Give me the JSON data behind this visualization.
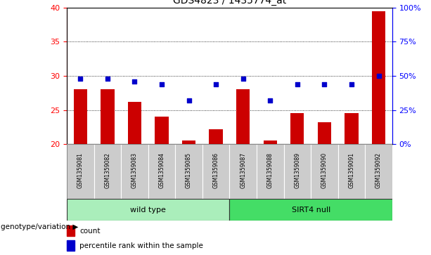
{
  "title": "GDS4823 / 1435774_at",
  "samples": [
    "GSM1359081",
    "GSM1359082",
    "GSM1359083",
    "GSM1359084",
    "GSM1359085",
    "GSM1359086",
    "GSM1359087",
    "GSM1359088",
    "GSM1359089",
    "GSM1359090",
    "GSM1359091",
    "GSM1359092"
  ],
  "count_values": [
    28.0,
    28.0,
    26.2,
    24.0,
    20.5,
    22.2,
    28.0,
    20.5,
    24.5,
    23.2,
    24.5,
    39.5
  ],
  "percentile_values": [
    48,
    48,
    46,
    44,
    32,
    44,
    48,
    32,
    44,
    44,
    44,
    50
  ],
  "ylim_left": [
    20,
    40
  ],
  "ylim_right": [
    0,
    100
  ],
  "yticks_left": [
    20,
    25,
    30,
    35,
    40
  ],
  "yticks_right": [
    0,
    25,
    50,
    75,
    100
  ],
  "bar_color": "#cc0000",
  "dot_color": "#0000cc",
  "bar_bottom": 20,
  "groups": [
    {
      "label": "wild type",
      "start": 0,
      "end": 6,
      "color": "#aaeebb"
    },
    {
      "label": "SIRT4 null",
      "start": 6,
      "end": 12,
      "color": "#44dd66"
    }
  ],
  "group_label": "genotype/variation",
  "legend_items": [
    {
      "color": "#cc0000",
      "label": "count"
    },
    {
      "color": "#0000cc",
      "label": "percentile rank within the sample"
    }
  ],
  "tick_bg_color": "#cccccc",
  "title_fontsize": 10,
  "axis_fontsize": 8,
  "sample_fontsize": 5.5,
  "group_fontsize": 8,
  "legend_fontsize": 7.5
}
